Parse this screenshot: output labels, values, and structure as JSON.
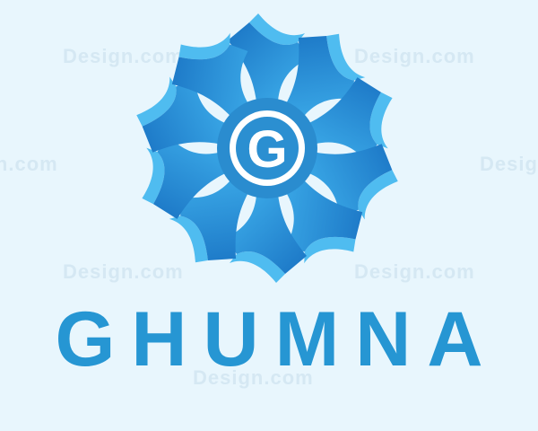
{
  "brand": {
    "name": "GHUMNA",
    "emblem_letter": "G"
  },
  "watermark_text": "Design.com",
  "colors": {
    "background": "#e8f6fd",
    "text": "#2696d3",
    "blade_dark": "#1a74c4",
    "blade_light": "#3fb0ec",
    "blade_edge": "#4fbcf0",
    "center_ring": "#2a8ccf",
    "center_fill": "#ffffff"
  },
  "emblem": {
    "blade_count": 10
  }
}
